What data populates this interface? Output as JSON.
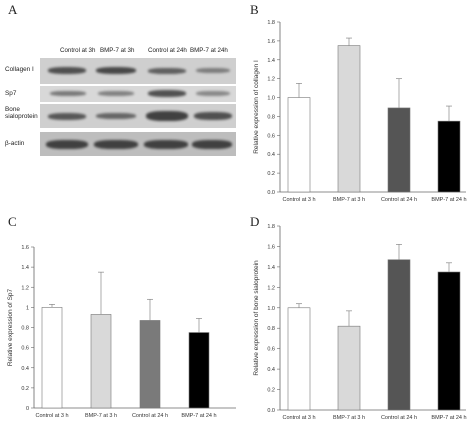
{
  "panel_labels": [
    "A",
    "B",
    "C",
    "D"
  ],
  "blot": {
    "lanes": [
      "Control at 3h",
      "BMP-7 at 3h",
      "Control at 24h",
      "BMP-7 at 24h"
    ],
    "rows": [
      "Collagen I",
      "Sp7",
      "Bone sialoprotein",
      "β-actin"
    ]
  },
  "chart_data": [
    {
      "type": "bar",
      "panel": "B",
      "categories": [
        "Control at 3 h",
        "BMP-7 at 3 h",
        "Control at 24 h",
        "BMP-7 at 24 h"
      ],
      "values": [
        1.0,
        1.55,
        0.89,
        0.75
      ],
      "errors": [
        0.15,
        0.08,
        0.31,
        0.16
      ],
      "ylabel": "Relative expression of collagen I",
      "ylim": [
        0,
        1.8
      ],
      "yticks": [
        "0.0",
        "0.2",
        "0.4",
        "0.6",
        "0.8",
        "1.0",
        "1.2",
        "1.4",
        "1.6",
        "1.8"
      ],
      "colors": [
        "#ffffff",
        "#d9d9d9",
        "#555555",
        "#000000"
      ]
    },
    {
      "type": "bar",
      "panel": "C",
      "categories": [
        "Control at 3 h",
        "BMP-7 at 3 h",
        "Control at 24 h",
        "BMP-7 at 24 h"
      ],
      "values": [
        1.0,
        0.93,
        0.87,
        0.75
      ],
      "errors": [
        0.03,
        0.42,
        0.21,
        0.14
      ],
      "ylabel": "Relative expression of Sp7",
      "ylim": [
        0,
        1.6
      ],
      "yticks": [
        "0",
        "0.2",
        "0.4",
        "0.6",
        "0.8",
        "1",
        "1.2",
        "1.4",
        "1.6"
      ],
      "colors": [
        "#ffffff",
        "#d9d9d9",
        "#7a7a7a",
        "#000000"
      ]
    },
    {
      "type": "bar",
      "panel": "D",
      "categories": [
        "Control at 3 h",
        "BMP-7 at 3 h",
        "Control at 24 h",
        "BMP-7 at 24 h"
      ],
      "values": [
        1.0,
        0.82,
        1.47,
        1.35
      ],
      "errors": [
        0.04,
        0.15,
        0.15,
        0.09
      ],
      "ylabel": "Relative expression of bone sialoprotein",
      "ylim": [
        0,
        1.8
      ],
      "yticks": [
        "0.0",
        "0.2",
        "0.4",
        "0.6",
        "0.8",
        "1.0",
        "1.2",
        "1.4",
        "1.6",
        "1.8"
      ],
      "colors": [
        "#ffffff",
        "#d9d9d9",
        "#555555",
        "#000000"
      ]
    }
  ]
}
